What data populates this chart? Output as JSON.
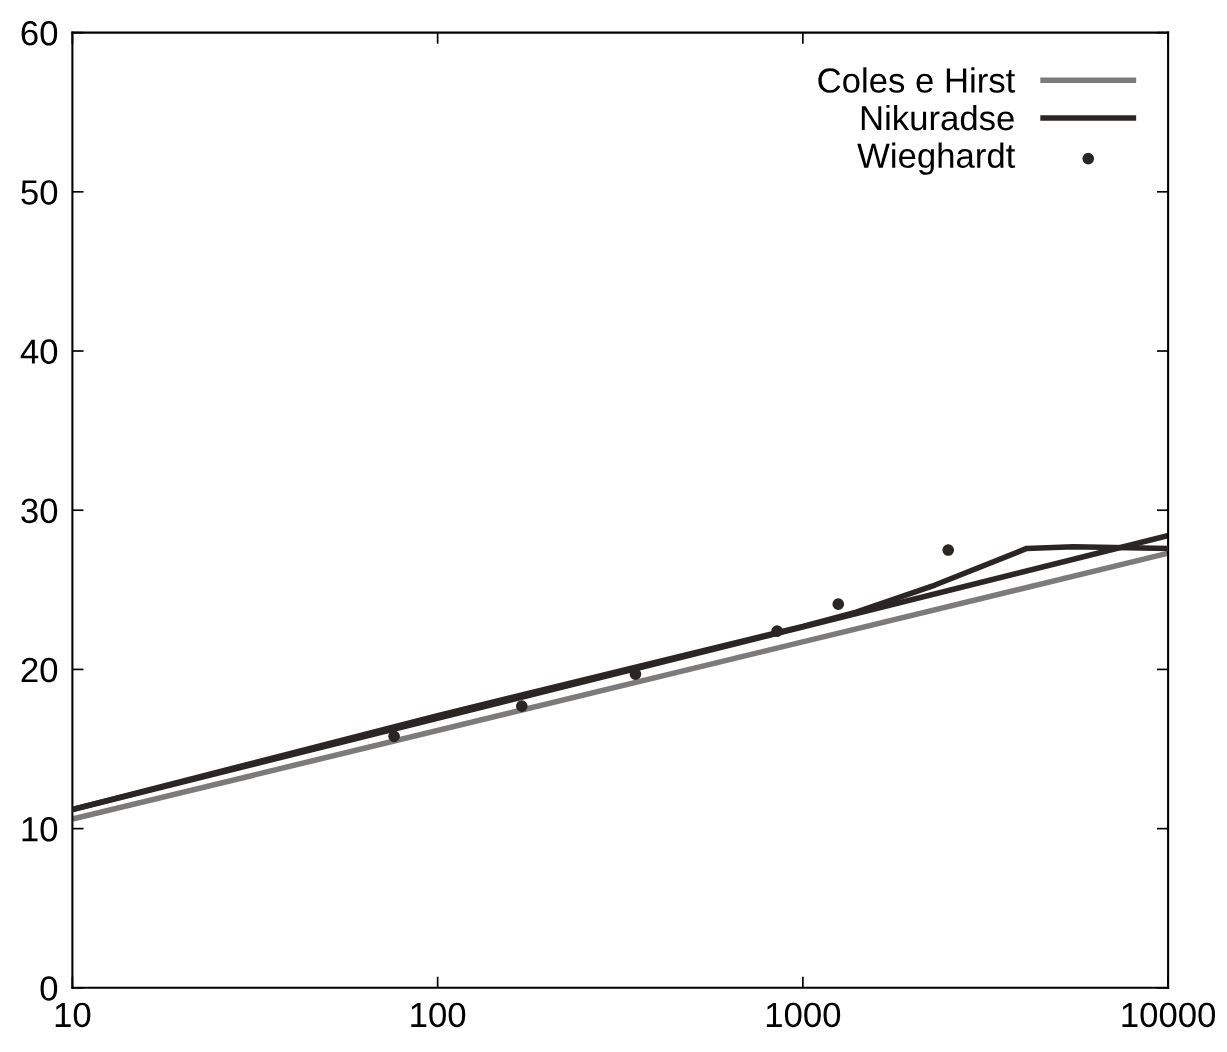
{
  "chart_data": {
    "type": "line",
    "log": "x",
    "xlim": [
      10,
      10000
    ],
    "xticks": [
      10,
      100,
      1000,
      10000
    ],
    "ylim": [
      0,
      60
    ],
    "yticks": [
      0,
      10,
      20,
      30,
      40,
      50,
      60
    ],
    "grid": false,
    "legend": "top right",
    "series": [
      {
        "color": "#2b2624",
        "x": [
          10,
          100,
          1000,
          1400,
          2300,
          4100,
          5500,
          10000
        ],
        "values": [
          11.2,
          17.1,
          22.7,
          23.6,
          25.3,
          27.6,
          27.7,
          27.6
        ]
      },
      {
        "name": "Coles e Hirst",
        "color": "#7d7b7a",
        "x": [
          10,
          10000
        ],
        "values": [
          10.6,
          27.3
        ]
      },
      {
        "name": "Nikuradse",
        "color": "#2b2624",
        "x": [
          10,
          10000
        ],
        "values": [
          11.2,
          28.4
        ]
      },
      {
        "name": "Wieghardt",
        "type": "scatter",
        "marker": "circle",
        "color": "#2b2624",
        "x": [
          76,
          170,
          348,
          850,
          1250,
          2500
        ],
        "values": [
          15.8,
          17.7,
          19.7,
          22.4,
          24.1,
          27.5
        ]
      }
    ]
  }
}
